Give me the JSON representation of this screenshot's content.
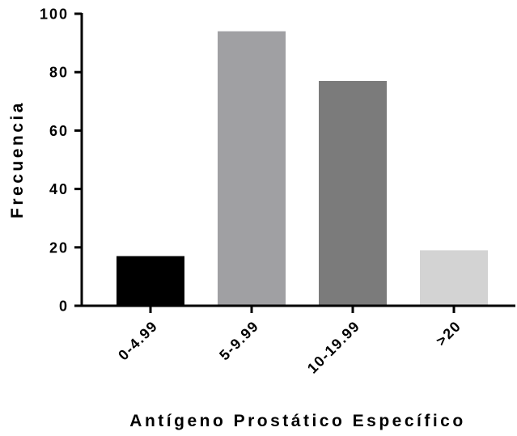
{
  "chart_data": {
    "type": "bar",
    "title": "",
    "xlabel": "Antígeno Prostático Específico",
    "ylabel": "Frecuencia",
    "categories": [
      "0-4.99",
      "5-9.99",
      "10-19.99",
      ">20"
    ],
    "values": [
      17,
      94,
      77,
      19
    ],
    "colors": [
      "#000000",
      "#a0a0a3",
      "#7b7b7b",
      "#d3d3d3"
    ],
    "ylim": [
      0,
      100
    ],
    "yticks": [
      0,
      20,
      40,
      60,
      80,
      100
    ],
    "grid": false,
    "legend": "none"
  }
}
